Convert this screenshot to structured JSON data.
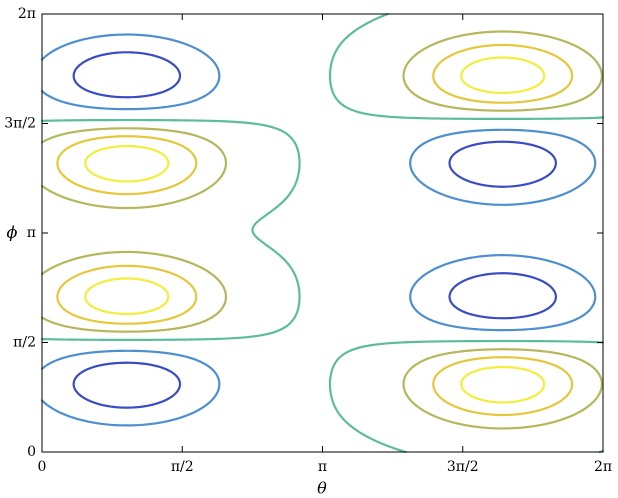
{
  "chart_data": {
    "type": "contour",
    "xlabel": "θ",
    "ylabel": "ϕ",
    "xlim": [
      0,
      6.2832
    ],
    "ylim": [
      0,
      6.2832
    ],
    "xticks": [
      0,
      {
        "value": 1.5708,
        "label": "π/2"
      },
      {
        "value": 3.1416,
        "label": "π"
      },
      {
        "value": 4.7124,
        "label": "3π/2"
      },
      {
        "value": 6.2832,
        "label": "2π"
      }
    ],
    "yticks": [
      0,
      {
        "value": 1.5708,
        "label": "π/2"
      },
      {
        "value": 3.1416,
        "label": "π"
      },
      {
        "value": 4.7124,
        "label": "3π/2"
      },
      {
        "value": 6.2832,
        "label": "2π"
      }
    ],
    "levels": [
      -0.7,
      -0.35,
      0.02,
      0.3,
      0.55,
      0.8
    ],
    "colors": [
      "#3a4cc4",
      "#4e8fd0",
      "#5ebc9e",
      "#b5b75a",
      "#e6c73a",
      "#f2ee3c"
    ],
    "spread": [
      0.72,
      0.42
    ],
    "peaks": [
      {
        "x": 0.95,
        "y": 0.99,
        "z": -1
      },
      {
        "x": 0.95,
        "y": 2.21,
        "z": 1
      },
      {
        "x": 0.95,
        "y": 4.16,
        "z": 1
      },
      {
        "x": 0.95,
        "y": 5.38,
        "z": -1
      },
      {
        "x": 5.16,
        "y": 0.99,
        "z": 1
      },
      {
        "x": 5.16,
        "y": 2.21,
        "z": -1
      },
      {
        "x": 5.16,
        "y": 4.16,
        "z": -1
      },
      {
        "x": 5.16,
        "y": 5.38,
        "z": 1
      }
    ]
  }
}
